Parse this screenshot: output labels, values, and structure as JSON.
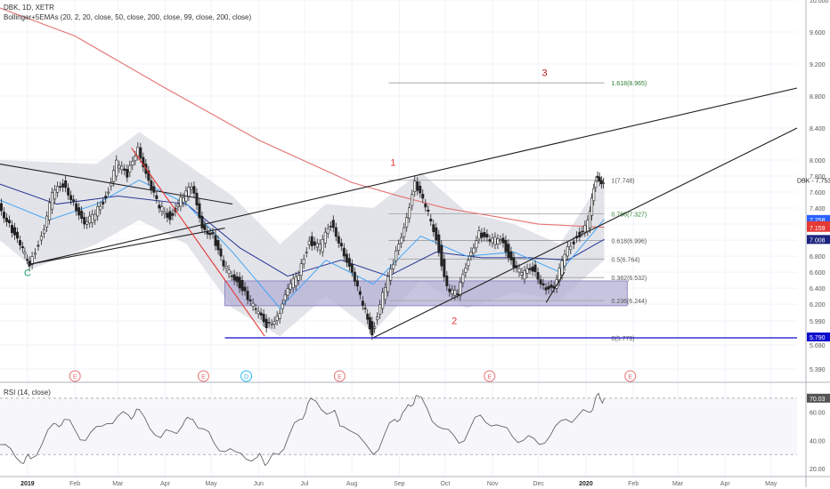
{
  "header": {
    "title": "DBK, 1D, XETR",
    "indicator": "Bollinger+5EMAs (20, 2, 20, close, 50, close, 200, close, 99, close, 200, close)"
  },
  "rsi_panel": {
    "title": "RSI (14, close)",
    "value_badge": "70.03"
  },
  "symbol_label": "DBK - 7.753",
  "price_badges": [
    {
      "text": "7.258",
      "value": 7.258,
      "color": "#2962ff"
    },
    {
      "text": "7.180",
      "value": 7.18,
      "color": "#e53935"
    },
    {
      "text": "7.159",
      "value": 7.159,
      "color": "#e53935"
    },
    {
      "text": "7.008",
      "value": 7.008,
      "color": "#1a237e"
    },
    {
      "text": "5.790",
      "value": 5.79,
      "color": "#0d0dcc"
    }
  ],
  "wave_labels": [
    {
      "text": "C",
      "date": "2019-01-01",
      "price": 6.55,
      "color": "#1aa260"
    },
    {
      "text": "1",
      "date": "2019-08-28",
      "price": 7.93,
      "color": "#e53935"
    },
    {
      "text": "2",
      "date": "2019-10-07",
      "price": 5.95,
      "color": "#e53935"
    },
    {
      "text": "3",
      "date": "2019-12-05",
      "price": 9.05,
      "color": "#b71c1c"
    }
  ],
  "earnings_markers": [
    {
      "text": "E",
      "date": "2019-02-01"
    },
    {
      "text": "E",
      "date": "2019-04-26"
    },
    {
      "text": "D",
      "date": "2019-05-24"
    },
    {
      "text": "E",
      "date": "2019-07-24"
    },
    {
      "text": "E",
      "date": "2019-10-30"
    },
    {
      "text": "E",
      "date": "2020-01-30"
    }
  ],
  "fib_levels": [
    {
      "label": "0(5.779)",
      "value": 5.779
    },
    {
      "label": "0.236(6.244)",
      "value": 6.244
    },
    {
      "label": "0.382(6.532)",
      "value": 6.532
    },
    {
      "label": "0.5(6.764)",
      "value": 6.764
    },
    {
      "label": "0.618(6.996)",
      "value": 6.996
    },
    {
      "label": "0.786(7.327)",
      "value": 7.327
    },
    {
      "label": "1(7.748)",
      "value": 7.748
    },
    {
      "label": "1.618(8.965)",
      "value": 8.965
    }
  ],
  "chart_data": {
    "type": "line",
    "x_axis": {
      "labels": [
        "2019",
        "Feb",
        "Mar",
        "Apr",
        "May",
        "Jun",
        "Jul",
        "Aug",
        "Sep",
        "Oct",
        "Nov",
        "Dec",
        "2020",
        "Feb",
        "Mar",
        "Apr",
        "May"
      ],
      "dates": [
        "2019-01-01",
        "2019-02-01",
        "2019-03-01",
        "2019-04-01",
        "2019-05-01",
        "2019-06-01",
        "2019-07-01",
        "2019-08-01",
        "2019-09-01",
        "2019-10-01",
        "2019-11-01",
        "2019-12-01",
        "2020-01-01",
        "2020-02-01",
        "2020-03-01",
        "2020-04-01",
        "2020-05-01"
      ],
      "range": [
        "2018-12-14",
        "2020-05-18"
      ]
    },
    "price_axis": {
      "ticks": [
        5.39,
        5.69,
        5.99,
        6.2,
        6.4,
        6.6,
        6.8,
        7.0,
        7.2,
        7.4,
        7.6,
        7.8,
        8.0,
        8.4,
        8.8,
        9.2,
        9.6,
        10.0
      ],
      "tick_labels": [
        "5.390",
        "5.690",
        "5.990",
        "6.200",
        "6.400",
        "6.600",
        "6.800",
        "7.000",
        "7.200",
        "7.400",
        "7.600",
        "7.800",
        "8.000",
        "8.400",
        "8.800",
        "9.200",
        "9.600",
        "10.000"
      ],
      "range": [
        5.39,
        10.0
      ]
    },
    "rsi_axis": {
      "ticks": [
        20,
        40,
        60
      ],
      "tick_labels": [
        "20.00",
        "40.00",
        "60.00"
      ],
      "range": [
        15,
        80
      ],
      "overbought": 70,
      "oversold": 30
    },
    "price_series": [
      {
        "date": "2018-12-14",
        "close": 7.45
      },
      {
        "date": "2018-12-21",
        "close": 7.2
      },
      {
        "date": "2018-12-28",
        "close": 6.9
      },
      {
        "date": "2019-01-03",
        "close": 6.72
      },
      {
        "date": "2019-01-11",
        "close": 7.05
      },
      {
        "date": "2019-01-18",
        "close": 7.55
      },
      {
        "date": "2019-01-25",
        "close": 7.7
      },
      {
        "date": "2019-02-01",
        "close": 7.5
      },
      {
        "date": "2019-02-08",
        "close": 7.15
      },
      {
        "date": "2019-02-15",
        "close": 7.35
      },
      {
        "date": "2019-02-22",
        "close": 7.55
      },
      {
        "date": "2019-03-01",
        "close": 7.95
      },
      {
        "date": "2019-03-08",
        "close": 7.8
      },
      {
        "date": "2019-03-15",
        "close": 8.2
      },
      {
        "date": "2019-03-22",
        "close": 7.7
      },
      {
        "date": "2019-03-29",
        "close": 7.4
      },
      {
        "date": "2019-04-05",
        "close": 7.3
      },
      {
        "date": "2019-04-12",
        "close": 7.5
      },
      {
        "date": "2019-04-19",
        "close": 7.65
      },
      {
        "date": "2019-04-26",
        "close": 7.2
      },
      {
        "date": "2019-05-03",
        "close": 7.05
      },
      {
        "date": "2019-05-10",
        "close": 6.65
      },
      {
        "date": "2019-05-17",
        "close": 6.55
      },
      {
        "date": "2019-05-24",
        "close": 6.35
      },
      {
        "date": "2019-05-31",
        "close": 6.1
      },
      {
        "date": "2019-06-07",
        "close": 5.95
      },
      {
        "date": "2019-06-14",
        "close": 6.05
      },
      {
        "date": "2019-06-21",
        "close": 6.35
      },
      {
        "date": "2019-06-28",
        "close": 6.6
      },
      {
        "date": "2019-07-05",
        "close": 7.0
      },
      {
        "date": "2019-07-12",
        "close": 6.9
      },
      {
        "date": "2019-07-19",
        "close": 7.2
      },
      {
        "date": "2019-07-26",
        "close": 6.95
      },
      {
        "date": "2019-08-02",
        "close": 6.55
      },
      {
        "date": "2019-08-09",
        "close": 6.2
      },
      {
        "date": "2019-08-15",
        "close": 5.85
      },
      {
        "date": "2019-08-22",
        "close": 6.3
      },
      {
        "date": "2019-08-29",
        "close": 6.7
      },
      {
        "date": "2019-09-05",
        "close": 7.2
      },
      {
        "date": "2019-09-12",
        "close": 7.7
      },
      {
        "date": "2019-09-19",
        "close": 7.4
      },
      {
        "date": "2019-09-26",
        "close": 7.05
      },
      {
        "date": "2019-10-03",
        "close": 6.4
      },
      {
        "date": "2019-10-10",
        "close": 6.3
      },
      {
        "date": "2019-10-17",
        "close": 6.8
      },
      {
        "date": "2019-10-24",
        "close": 7.1
      },
      {
        "date": "2019-10-31",
        "close": 6.95
      },
      {
        "date": "2019-11-07",
        "close": 7.05
      },
      {
        "date": "2019-11-14",
        "close": 6.75
      },
      {
        "date": "2019-11-21",
        "close": 6.55
      },
      {
        "date": "2019-11-28",
        "close": 6.65
      },
      {
        "date": "2019-12-05",
        "close": 6.45
      },
      {
        "date": "2019-12-12",
        "close": 6.35
      },
      {
        "date": "2019-12-19",
        "close": 6.85
      },
      {
        "date": "2019-12-27",
        "close": 7.05
      },
      {
        "date": "2020-01-03",
        "close": 7.2
      },
      {
        "date": "2020-01-08",
        "close": 7.75
      },
      {
        "date": "2020-01-13",
        "close": 7.753
      }
    ],
    "rsi_series": [
      {
        "date": "2018-12-14",
        "value": 37
      },
      {
        "date": "2018-12-28",
        "value": 24
      },
      {
        "date": "2019-01-03",
        "value": 27
      },
      {
        "date": "2019-01-18",
        "value": 52
      },
      {
        "date": "2019-01-25",
        "value": 55
      },
      {
        "date": "2019-02-08",
        "value": 40
      },
      {
        "date": "2019-02-22",
        "value": 52
      },
      {
        "date": "2019-03-08",
        "value": 58
      },
      {
        "date": "2019-03-15",
        "value": 62
      },
      {
        "date": "2019-03-29",
        "value": 42
      },
      {
        "date": "2019-04-12",
        "value": 50
      },
      {
        "date": "2019-04-19",
        "value": 55
      },
      {
        "date": "2019-05-03",
        "value": 38
      },
      {
        "date": "2019-05-17",
        "value": 32
      },
      {
        "date": "2019-05-31",
        "value": 28
      },
      {
        "date": "2019-06-07",
        "value": 24
      },
      {
        "date": "2019-06-14",
        "value": 30
      },
      {
        "date": "2019-06-28",
        "value": 55
      },
      {
        "date": "2019-07-05",
        "value": 70
      },
      {
        "date": "2019-07-19",
        "value": 60
      },
      {
        "date": "2019-07-26",
        "value": 50
      },
      {
        "date": "2019-08-15",
        "value": 30
      },
      {
        "date": "2019-08-29",
        "value": 55
      },
      {
        "date": "2019-09-05",
        "value": 62
      },
      {
        "date": "2019-09-12",
        "value": 72
      },
      {
        "date": "2019-09-26",
        "value": 50
      },
      {
        "date": "2019-10-10",
        "value": 38
      },
      {
        "date": "2019-10-24",
        "value": 58
      },
      {
        "date": "2019-11-07",
        "value": 50
      },
      {
        "date": "2019-11-21",
        "value": 40
      },
      {
        "date": "2019-12-05",
        "value": 38
      },
      {
        "date": "2019-12-19",
        "value": 55
      },
      {
        "date": "2020-01-03",
        "value": 60
      },
      {
        "date": "2020-01-08",
        "value": 72
      },
      {
        "date": "2020-01-13",
        "value": 70
      }
    ],
    "ema_red_200": [
      {
        "date": "2018-12-14",
        "value": 9.9
      },
      {
        "date": "2019-02-01",
        "value": 9.55
      },
      {
        "date": "2019-04-01",
        "value": 8.9
      },
      {
        "date": "2019-06-01",
        "value": 8.25
      },
      {
        "date": "2019-08-01",
        "value": 7.72
      },
      {
        "date": "2019-09-01",
        "value": 7.55
      },
      {
        "date": "2019-10-01",
        "value": 7.4
      },
      {
        "date": "2019-11-01",
        "value": 7.3
      },
      {
        "date": "2019-12-01",
        "value": 7.2
      },
      {
        "date": "2020-01-13",
        "value": 7.16
      }
    ],
    "ema_navy_50": [
      {
        "date": "2018-12-14",
        "value": 7.7
      },
      {
        "date": "2019-01-20",
        "value": 7.45
      },
      {
        "date": "2019-03-01",
        "value": 7.55
      },
      {
        "date": "2019-04-15",
        "value": 7.45
      },
      {
        "date": "2019-05-20",
        "value": 6.9
      },
      {
        "date": "2019-06-20",
        "value": 6.55
      },
      {
        "date": "2019-07-25",
        "value": 6.75
      },
      {
        "date": "2019-08-25",
        "value": 6.55
      },
      {
        "date": "2019-09-25",
        "value": 6.85
      },
      {
        "date": "2019-10-25",
        "value": 6.78
      },
      {
        "date": "2019-11-25",
        "value": 6.78
      },
      {
        "date": "2019-12-20",
        "value": 6.75
      },
      {
        "date": "2020-01-13",
        "value": 7.01
      }
    ],
    "ema_blue_20": [
      {
        "date": "2018-12-14",
        "value": 7.5
      },
      {
        "date": "2019-01-15",
        "value": 7.25
      },
      {
        "date": "2019-02-15",
        "value": 7.45
      },
      {
        "date": "2019-03-15",
        "value": 7.75
      },
      {
        "date": "2019-04-15",
        "value": 7.45
      },
      {
        "date": "2019-05-15",
        "value": 6.85
      },
      {
        "date": "2019-06-15",
        "value": 6.15
      },
      {
        "date": "2019-07-15",
        "value": 6.75
      },
      {
        "date": "2019-08-15",
        "value": 6.45
      },
      {
        "date": "2019-09-15",
        "value": 7.05
      },
      {
        "date": "2019-10-15",
        "value": 6.8
      },
      {
        "date": "2019-11-15",
        "value": 6.85
      },
      {
        "date": "2019-12-15",
        "value": 6.6
      },
      {
        "date": "2020-01-13",
        "value": 7.26
      }
    ],
    "bollinger_band": {
      "upper": [
        {
          "date": "2018-12-14",
          "value": 8.0
        },
        {
          "date": "2019-02-15",
          "value": 7.95
        },
        {
          "date": "2019-03-15",
          "value": 8.35
        },
        {
          "date": "2019-04-15",
          "value": 7.95
        },
        {
          "date": "2019-05-15",
          "value": 7.55
        },
        {
          "date": "2019-06-15",
          "value": 6.95
        },
        {
          "date": "2019-07-15",
          "value": 7.45
        },
        {
          "date": "2019-08-15",
          "value": 7.4
        },
        {
          "date": "2019-09-15",
          "value": 7.85
        },
        {
          "date": "2019-10-15",
          "value": 7.35
        },
        {
          "date": "2019-11-15",
          "value": 7.2
        },
        {
          "date": "2019-12-15",
          "value": 6.95
        },
        {
          "date": "2020-01-13",
          "value": 7.8
        }
      ],
      "lower": [
        {
          "date": "2018-12-14",
          "value": 7.0
        },
        {
          "date": "2019-01-05",
          "value": 6.65
        },
        {
          "date": "2019-02-15",
          "value": 6.95
        },
        {
          "date": "2019-03-15",
          "value": 7.25
        },
        {
          "date": "2019-04-15",
          "value": 6.95
        },
        {
          "date": "2019-05-15",
          "value": 6.15
        },
        {
          "date": "2019-06-15",
          "value": 5.8
        },
        {
          "date": "2019-07-15",
          "value": 6.3
        },
        {
          "date": "2019-08-15",
          "value": 5.85
        },
        {
          "date": "2019-09-15",
          "value": 6.5
        },
        {
          "date": "2019-10-15",
          "value": 6.15
        },
        {
          "date": "2019-11-15",
          "value": 6.35
        },
        {
          "date": "2019-12-15",
          "value": 6.25
        },
        {
          "date": "2020-01-13",
          "value": 6.75
        }
      ]
    },
    "trendlines": [
      {
        "name": "falling-wedge-upper",
        "color": "#222222",
        "from": {
          "date": "2018-12-14",
          "value": 7.95
        },
        "to": {
          "date": "2019-05-15",
          "value": 7.45
        }
      },
      {
        "name": "falling-wedge-lower",
        "color": "#222222",
        "from": {
          "date": "2019-01-03",
          "value": 6.7
        },
        "to": {
          "date": "2019-05-10",
          "value": 7.15
        }
      },
      {
        "name": "long-resistance",
        "color": "#222222",
        "from": {
          "date": "2019-01-03",
          "value": 6.7
        },
        "to": {
          "date": "2020-05-18",
          "value": 8.9
        }
      },
      {
        "name": "rising-support",
        "color": "#222222",
        "from": {
          "date": "2019-08-15",
          "value": 5.78
        },
        "to": {
          "date": "2020-05-18",
          "value": 8.4
        }
      },
      {
        "name": "red-decline",
        "color": "#e53935",
        "from": {
          "date": "2019-03-10",
          "value": 8.15
        },
        "to": {
          "date": "2019-06-05",
          "value": 5.8
        }
      },
      {
        "name": "support-5779",
        "color": "#0d0dcc",
        "from": {
          "date": "2019-05-10",
          "value": 5.779
        },
        "to": {
          "date": "2020-05-18",
          "value": 5.779
        }
      },
      {
        "name": "dec-rally-line",
        "color": "#222222",
        "from": {
          "date": "2019-12-06",
          "value": 6.22
        },
        "to": {
          "date": "2019-12-18",
          "value": 6.6
        }
      }
    ],
    "support_zone": {
      "from_date": "2019-05-10",
      "to_date": "2020-01-28",
      "low": 6.18,
      "high": 6.49
    },
    "fib_range": {
      "from_date": "2019-08-25",
      "to_date": "2020-01-13"
    }
  }
}
